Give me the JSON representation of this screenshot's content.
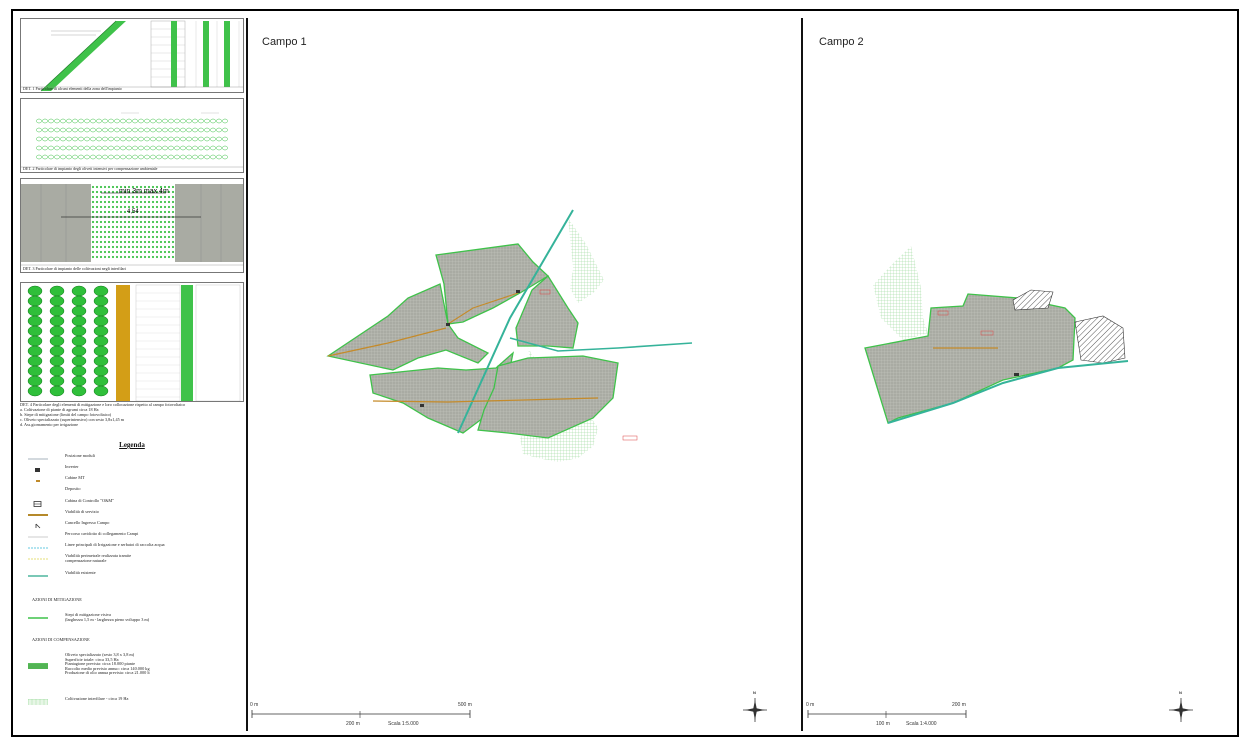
{
  "details": [
    {
      "caption": "DET. 1 Particolare di alcuni elementi della zona dell'impianto"
    },
    {
      "caption": "DET. 2 Particolare di impianto degli oliveti intensivi per compensazione ambientale"
    },
    {
      "caption": "DET. 3 Particolare di impianto delle coltivazioni negli interfilari",
      "dimension_text": "min 3m max 4m",
      "width_text": "4,54"
    },
    {
      "caption": "DET. 4 Particolare degli elementi di mitigazione e loro collocazione rispetto al campo fotovoltaico"
    }
  ],
  "det4_notes": [
    "a. Coltivazione di piante di agrumi circa 18 Ha",
    "b. Siepe di mitigazione (limiti del campo fotovoltaico)",
    "c. Oliveto specializzato (superintensivo) con sesto 3,8x1,45 m",
    "d. Ass.giornamento per irrigazione"
  ],
  "legend": {
    "title": "Legenda",
    "items": [
      {
        "label": "Posizione moduli",
        "symbol": "thin-line",
        "color": "#8a9aa8"
      },
      {
        "label": "Inverter",
        "symbol": "inverter",
        "color": "#333333"
      },
      {
        "label": "Cabine MT",
        "symbol": "dash",
        "color": "#c08a2a"
      },
      {
        "label": "Deposito",
        "symbol": "none",
        "color": "#333333"
      },
      {
        "label": "Cabina di Controllo \"O&M\"",
        "symbol": "box",
        "color": "#333333"
      },
      {
        "label": "Viabilità di servizio",
        "symbol": "thick-line",
        "color": "#b5892a"
      },
      {
        "label": "Cancello Ingresso Campo",
        "symbol": "gate",
        "color": "#333333"
      },
      {
        "label": "Percorso cavidotto di collegamento Campi",
        "symbol": "thin-line",
        "color": "#bbbbbb"
      },
      {
        "label": "Linee principali di Irrigazione e serbatoi di raccolta acqua",
        "symbol": "dashed-line",
        "color": "#66c8e0"
      },
      {
        "label": "Viabilità perimetrale realizzata tramite\ncompensazione naturale",
        "symbol": "dashed-line",
        "color": "#e6df7a"
      },
      {
        "label": "Viabilità esistente",
        "symbol": "line",
        "color": "#2aa88a"
      }
    ],
    "mitigation_heading": "AZIONI DI MITIGAZIONE",
    "mitigation_item": "Siepi di mitigazione visiva\n(larghezza 1,5 m - larghezza pieno sviluppo 3 m)",
    "compensation_heading": "AZIONI DI COMPENSAZIONE",
    "compensation_items": [
      "Oliveto specializzato (sesto 3,8 x 3,8 m)\nSuperficie totale: circa 33,5 Ha\nPiantagione prevista: circa 18.000 piante\nRaccolto medio previsto annuo: circa 140.000 kg\nProduzione di olio annua prevista: circa 21.000 lt",
      "Coltivazione interfilare - circa 19 Ha"
    ]
  },
  "campo1": {
    "title": "Campo 1",
    "scale_label": "Scala 1:5.000",
    "ticks": [
      "0 m",
      "200 m",
      "500 m"
    ]
  },
  "campo2": {
    "title": "Campo 2",
    "scale_label": "Scala 1:4.000",
    "ticks": [
      "0 m",
      "100 m",
      "200 m"
    ]
  },
  "north_label": "N",
  "colors": {
    "pv_gray": "#a9aba3",
    "green": "#3fc24a",
    "light_green": "#cdeccb",
    "road": "#c58b2a",
    "existing_road": "#35b39a"
  }
}
